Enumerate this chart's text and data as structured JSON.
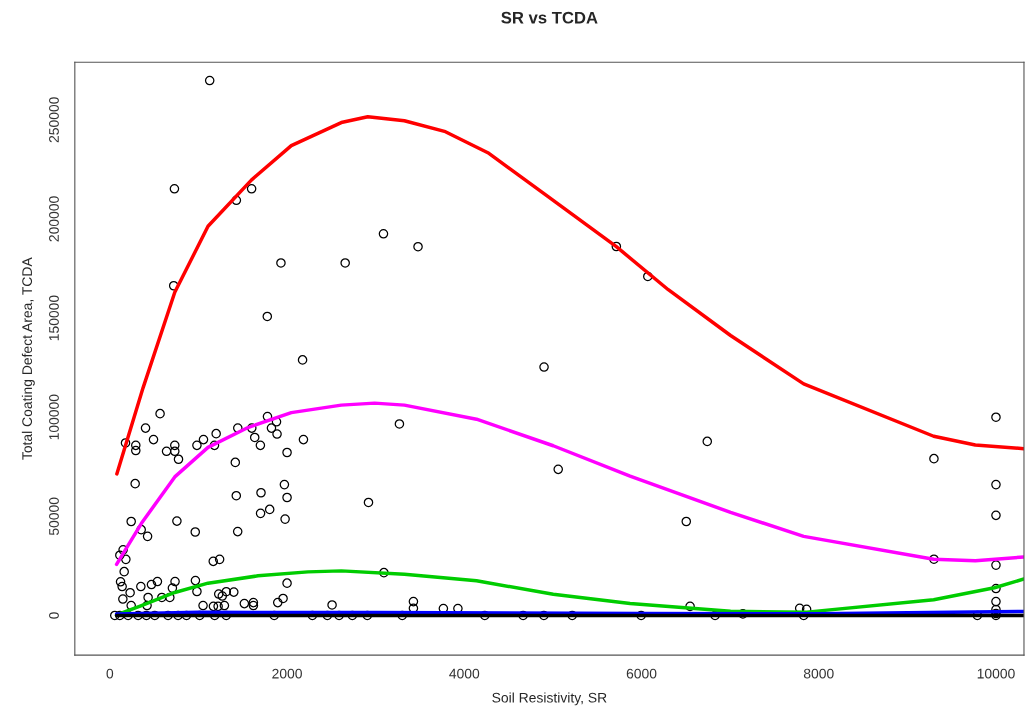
{
  "chart_data": {
    "type": "scatter",
    "title": "SR vs TCDA",
    "xlabel": "Soil Resistivity, SR",
    "ylabel": "Total Coating Defect Area, TCDA",
    "xlim": [
      -395,
      10316
    ],
    "ylim": [
      -20000,
      279000
    ],
    "xticks": [
      0,
      2000,
      4000,
      6000,
      8000,
      10000
    ],
    "yticks": [
      0,
      50000,
      100000,
      150000,
      200000,
      250000
    ],
    "grid": false,
    "legend": false,
    "series": [
      {
        "marker": "circle",
        "color": "#000000",
        "x": [
          1127,
          729,
          1428,
          1600,
          721,
          1931,
          2656,
          3088,
          1777,
          2175,
          3478,
          5716,
          6071,
          4900,
          5060,
          6742,
          6505,
          6548,
          3426,
          3426,
          3764,
          3928,
          3268,
          4231,
          4664,
          4898,
          5218,
          5996,
          6830,
          10000,
          9300,
          10000,
          10000,
          9300,
          10000,
          10000,
          10000,
          10000,
          10000,
          10000,
          7785,
          7863,
          7830,
          7144,
          9790,
          567,
          403,
          493,
          177,
          293,
          293,
          640,
          733,
          733,
          775,
          983,
          1057,
          1200,
          1181,
          1444,
          1602,
          1779,
          1824,
          1881,
          1887,
          1635,
          1699,
          2185,
          2000,
          1416,
          286,
          1427,
          1706,
          1970,
          2000,
          1804,
          1701,
          1978,
          2919,
          241,
          757,
          354,
          426,
          964,
          1443,
          113,
          150,
          181,
          162,
          1167,
          1239,
          3093,
          121,
          139,
          229,
          147,
          350,
          470,
          537,
          736,
          706,
          966,
          983,
          1229,
          1314,
          1399,
          1269,
          2000,
          1955,
          1895,
          1518,
          1620,
          1620,
          2508,
          432,
          420,
          587,
          677,
          1052,
          1169,
          1222,
          1293,
          241,
          56,
          113,
          206,
          319,
          413,
          507,
          657,
          770,
          865,
          1014,
          1183,
          1314,
          1855,
          2286,
          2455,
          2587,
          2737,
          2906,
          3300
        ],
        "values": [
          269800,
          215200,
          209400,
          215200,
          166300,
          177800,
          177800,
          192500,
          150800,
          128900,
          186000,
          186100,
          171000,
          125300,
          73700,
          87800,
          47400,
          4600,
          7000,
          3600,
          3500,
          3500,
          96600,
          0,
          0,
          0,
          0,
          0,
          0,
          100000,
          79100,
          66000,
          50500,
          28400,
          25400,
          13600,
          7000,
          3000,
          1000,
          0,
          3600,
          3100,
          0,
          800,
          0,
          101800,
          94500,
          88700,
          87000,
          85800,
          83200,
          82800,
          85800,
          82800,
          78800,
          85800,
          88700,
          91700,
          85800,
          94500,
          94500,
          100300,
          94500,
          97700,
          91500,
          89800,
          85800,
          88700,
          82200,
          77200,
          66500,
          60400,
          61900,
          66000,
          59500,
          53500,
          51500,
          48600,
          57000,
          47400,
          47600,
          43300,
          39900,
          42100,
          42300,
          30400,
          33100,
          28300,
          22100,
          27300,
          28300,
          21600,
          17000,
          14600,
          11500,
          8300,
          14600,
          15600,
          17100,
          17100,
          13800,
          17600,
          12100,
          10800,
          12000,
          11800,
          9800,
          16300,
          8600,
          6500,
          6000,
          6500,
          5000,
          5300,
          9100,
          5000,
          9100,
          9100,
          5000,
          4600,
          4600,
          5000,
          5000,
          0,
          0,
          0,
          0,
          0,
          0,
          0,
          0,
          0,
          0,
          0,
          0,
          0,
          0,
          0,
          0,
          0,
          0,
          0
        ]
      },
      {
        "type": "line",
        "color": "#ff0000",
        "x": [
          79,
          375,
          733,
          1108,
          1597,
          2048,
          2612,
          2911,
          3324,
          3787,
          4266,
          4915,
          5716,
          6302,
          7005,
          7830,
          9297,
          9767,
          10316
        ],
        "values": [
          71400,
          114800,
          163000,
          196300,
          219600,
          237000,
          248600,
          251500,
          249500,
          244000,
          233400,
          212300,
          186000,
          164300,
          141200,
          116800,
          90400,
          86000,
          84100
        ]
      },
      {
        "type": "line",
        "color": "#ff00ff",
        "x": [
          76,
          357,
          733,
          1108,
          1559,
          2048,
          2612,
          2988,
          3324,
          4138,
          5004,
          5871,
          7005,
          7830,
          9297,
          9767,
          10316
        ],
        "values": [
          25800,
          46500,
          69900,
          84800,
          94800,
          102300,
          106100,
          107100,
          106100,
          99000,
          85600,
          70300,
          52000,
          39900,
          28400,
          27600,
          29500
        ]
      },
      {
        "type": "line",
        "color": "#00cc00",
        "x": [
          76,
          357,
          733,
          1108,
          1672,
          2236,
          2612,
          3324,
          4138,
          5004,
          5871,
          7005,
          7866,
          9297,
          9983,
          10316
        ],
        "values": [
          300,
          5000,
          11600,
          16300,
          20000,
          22000,
          22500,
          20800,
          17500,
          10700,
          6000,
          2100,
          1700,
          7900,
          14000,
          18400
        ]
      },
      {
        "type": "line",
        "color": "#0000ff",
        "x": [
          76,
          1000,
          3000,
          6000,
          8000,
          10316
        ],
        "values": [
          800,
          1600,
          1500,
          1000,
          900,
          2000
        ]
      },
      {
        "type": "line",
        "color": "#000000",
        "x": [
          76,
          3000,
          10316
        ],
        "values": [
          0,
          0,
          0
        ]
      }
    ]
  }
}
